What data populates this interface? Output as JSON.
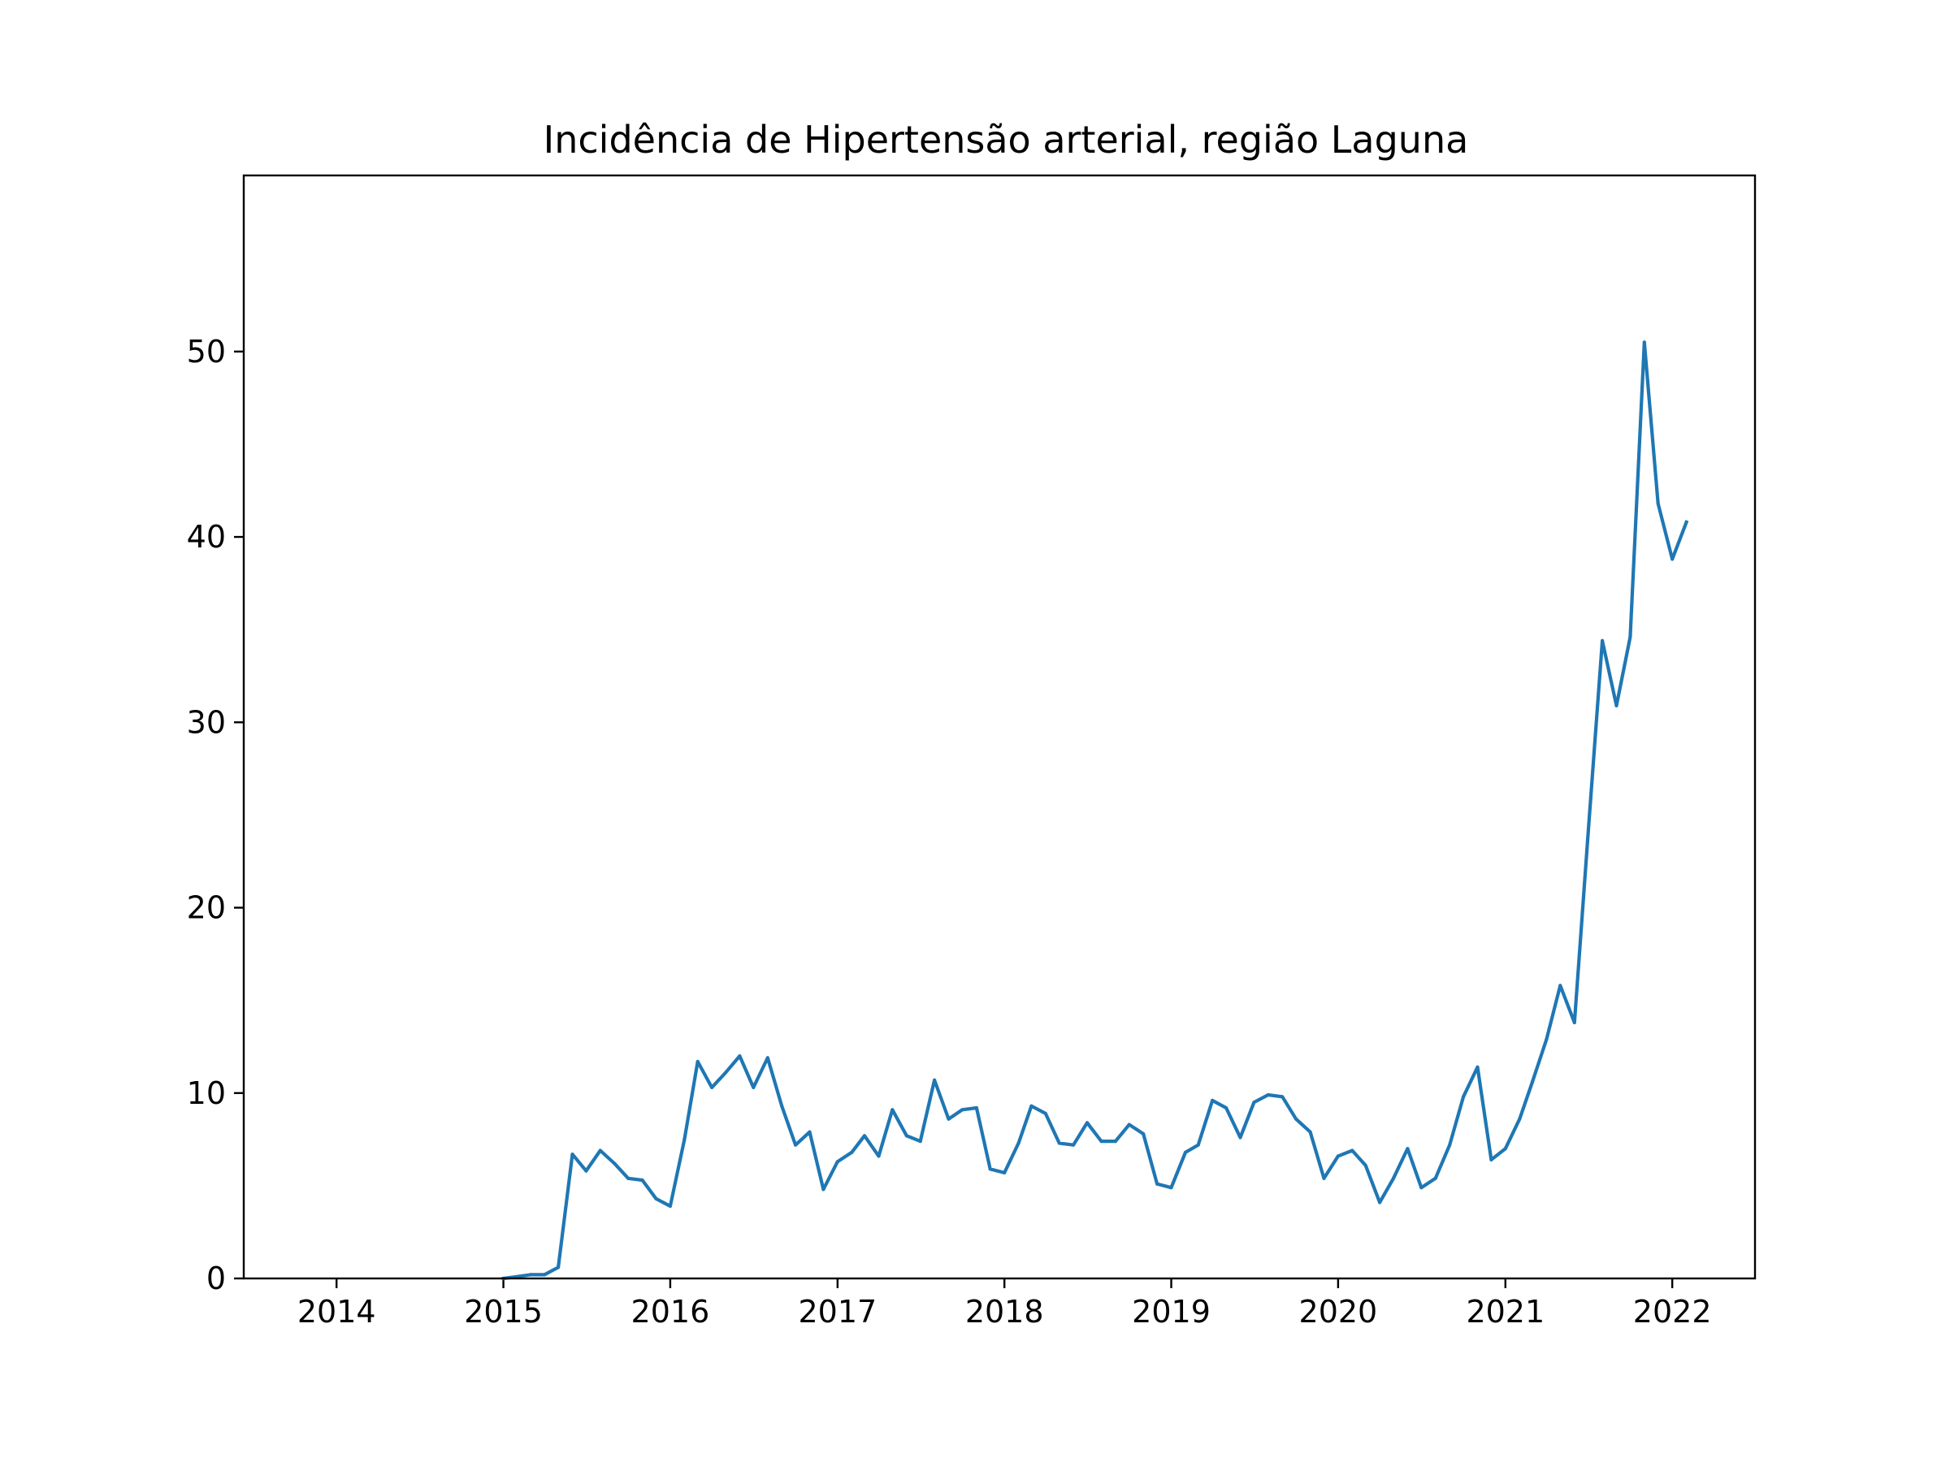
{
  "chart_data": {
    "type": "line",
    "title": "Incidência de Hipertensão arterial, região Laguna",
    "xlabel": "",
    "ylabel": "",
    "xlim": [
      "2013-06-12",
      "2022-07-01"
    ],
    "ylim": [
      0,
      59.5
    ],
    "grid": false,
    "legend": "none",
    "x_ticks": [
      "2014",
      "2015",
      "2016",
      "2017",
      "2018",
      "2019",
      "2020",
      "2021",
      "2022"
    ],
    "y_ticks": [
      "0",
      "10",
      "20",
      "30",
      "40",
      "50"
    ],
    "series": [
      {
        "color": "#1f77b4",
        "x": [
          "2015-01",
          "2015-02",
          "2015-03",
          "2015-04",
          "2015-05",
          "2015-06",
          "2015-07",
          "2015-08",
          "2015-09",
          "2015-10",
          "2015-11",
          "2015-12",
          "2016-01",
          "2016-02",
          "2016-03",
          "2016-04",
          "2016-05",
          "2016-06",
          "2016-07",
          "2016-08",
          "2016-09",
          "2016-10",
          "2016-11",
          "2016-12",
          "2017-01",
          "2017-02",
          "2017-03",
          "2017-04",
          "2017-05",
          "2017-06",
          "2017-07",
          "2017-08",
          "2017-09",
          "2017-10",
          "2017-11",
          "2017-12",
          "2018-01",
          "2018-02",
          "2018-03",
          "2018-04",
          "2018-05",
          "2018-06",
          "2018-07",
          "2018-08",
          "2018-09",
          "2018-10",
          "2018-11",
          "2018-12",
          "2019-01",
          "2019-02",
          "2019-03",
          "2019-04",
          "2019-05",
          "2019-06",
          "2019-07",
          "2019-08",
          "2019-09",
          "2019-10",
          "2019-11",
          "2019-12",
          "2020-01",
          "2020-02",
          "2020-03",
          "2020-04",
          "2020-05",
          "2020-06",
          "2020-07",
          "2020-08",
          "2020-09",
          "2020-10",
          "2020-11",
          "2020-12",
          "2021-01",
          "2021-02",
          "2021-03",
          "2021-04",
          "2021-05",
          "2021-06",
          "2021-07",
          "2021-08",
          "2021-09",
          "2021-10",
          "2021-11",
          "2021-12",
          "2022-01",
          "2022-02"
        ],
        "values": [
          0.0,
          0.1,
          0.2,
          0.2,
          0.6,
          6.7,
          5.8,
          6.9,
          6.2,
          5.4,
          5.3,
          4.3,
          3.9,
          7.5,
          11.7,
          10.3,
          11.1,
          12.0,
          10.3,
          11.9,
          9.3,
          7.2,
          7.9,
          4.8,
          6.3,
          6.8,
          7.7,
          6.6,
          9.1,
          7.7,
          7.4,
          10.7,
          8.6,
          9.1,
          9.2,
          5.9,
          5.7,
          7.3,
          9.3,
          8.9,
          7.3,
          7.2,
          8.4,
          7.4,
          7.4,
          8.3,
          7.8,
          5.1,
          4.9,
          6.8,
          7.2,
          9.6,
          9.2,
          7.6,
          9.5,
          9.9,
          9.8,
          8.6,
          7.9,
          5.4,
          6.6,
          6.9,
          6.1,
          4.1,
          5.4,
          7.0,
          4.9,
          5.4,
          7.2,
          9.8,
          11.4,
          6.4,
          7.0,
          8.6,
          10.6,
          12.9,
          15.8,
          13.8,
          24.0,
          34.4,
          30.9,
          34.6,
          50.5,
          41.8,
          38.8,
          40.8
        ]
      }
    ]
  }
}
